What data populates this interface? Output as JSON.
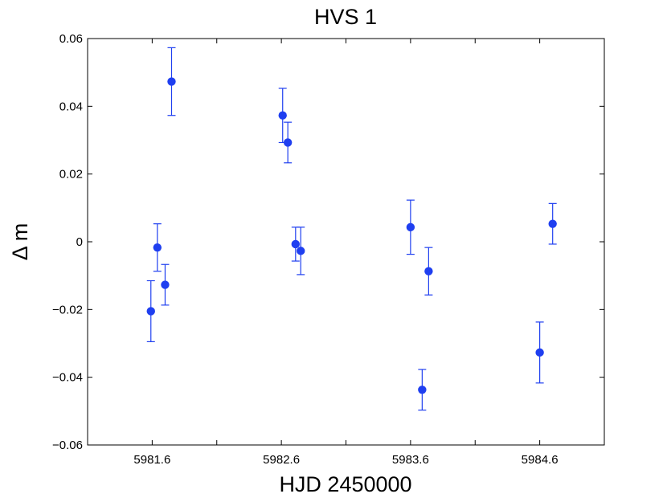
{
  "chart_data": {
    "type": "scatter",
    "title": "HVS 1",
    "xlabel": "HJD 2450000",
    "ylabel": "Δ m",
    "xlim": [
      5981.1,
      5985.1
    ],
    "ylim": [
      -0.06,
      0.06
    ],
    "x_ticks": [
      5981.6,
      5982.1,
      5982.6,
      5983.1,
      5983.6,
      5984.1,
      5984.6
    ],
    "x_tick_labels": [
      "5981.6",
      "",
      "5982.6",
      "",
      "5983.6",
      "",
      "5984.6"
    ],
    "y_ticks": [
      -0.06,
      -0.04,
      -0.02,
      0,
      0.02,
      0.04,
      0.06
    ],
    "y_tick_labels": [
      "−0.06",
      "−0.04",
      "−0.02",
      "0",
      "0.02",
      "0.04",
      "0.06"
    ],
    "grid": false,
    "color": "#1f3ff0",
    "points": [
      {
        "x": 5981.59,
        "y": -0.0205,
        "err": 0.009
      },
      {
        "x": 5981.64,
        "y": -0.0017,
        "err": 0.007
      },
      {
        "x": 5981.7,
        "y": -0.0127,
        "err": 0.006
      },
      {
        "x": 5981.75,
        "y": 0.0473,
        "err": 0.01
      },
      {
        "x": 5982.61,
        "y": 0.0373,
        "err": 0.008
      },
      {
        "x": 5982.65,
        "y": 0.0293,
        "err": 0.006
      },
      {
        "x": 5982.71,
        "y": -0.0007,
        "err": 0.005
      },
      {
        "x": 5982.75,
        "y": -0.0027,
        "err": 0.007
      },
      {
        "x": 5983.6,
        "y": 0.0043,
        "err": 0.008
      },
      {
        "x": 5983.69,
        "y": -0.0437,
        "err": 0.006
      },
      {
        "x": 5983.74,
        "y": -0.0087,
        "err": 0.007
      },
      {
        "x": 5984.6,
        "y": -0.0327,
        "err": 0.009
      },
      {
        "x": 5984.7,
        "y": 0.0053,
        "err": 0.006
      }
    ]
  }
}
